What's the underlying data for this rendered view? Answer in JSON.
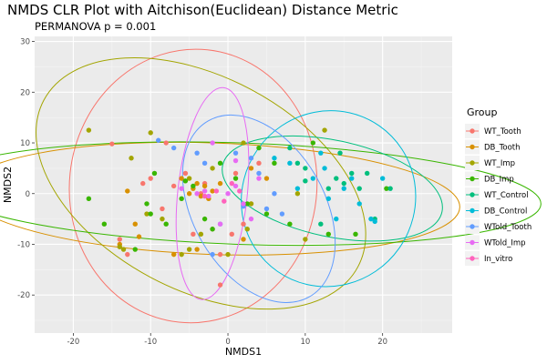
{
  "chart_data": {
    "type": "scatter",
    "title": "NMDS CLR Plot with Aitchison(Euclidean) Distance Metric",
    "subtitle": "PERMANOVA p = 0.001",
    "xlabel": "NMDS1",
    "ylabel": "NMDS2",
    "xlim": [
      -25,
      29
    ],
    "ylim": [
      -27.5,
      31
    ],
    "xticks": [
      -20,
      -10,
      0,
      10,
      20
    ],
    "yticks": [
      -20,
      -10,
      0,
      10,
      20,
      30
    ],
    "grid": true,
    "legend_title": "Group",
    "legend_position": "right",
    "series": [
      {
        "name": "WT_Tooth",
        "color": "#F8766D",
        "points": [
          [
            -15,
            9.8
          ],
          [
            -11,
            2
          ],
          [
            -13,
            -12
          ],
          [
            -10,
            3
          ],
          [
            -8.5,
            -3
          ],
          [
            -8,
            10
          ],
          [
            -7,
            1.5
          ],
          [
            -5.5,
            4
          ],
          [
            -4.5,
            -8
          ],
          [
            -3.5,
            0
          ],
          [
            -3,
            2
          ],
          [
            -2,
            -7
          ],
          [
            -1,
            -12
          ],
          [
            0.5,
            -8
          ],
          [
            1,
            4
          ],
          [
            2,
            -6
          ],
          [
            3,
            -2
          ],
          [
            4,
            6
          ],
          [
            -14,
            -9
          ],
          [
            -1,
            -18
          ]
        ],
        "ellipse": {
          "cx": -4.5,
          "cy": 1.5,
          "rx": 16,
          "ry": 27,
          "angle": -6
        }
      },
      {
        "name": "DB_Tooth",
        "color": "#D89000",
        "points": [
          [
            -14,
            -10
          ],
          [
            -11.5,
            -8.5
          ],
          [
            -13,
            0.5
          ],
          [
            -7,
            -12
          ],
          [
            -6,
            3
          ],
          [
            -5,
            0
          ],
          [
            -4.5,
            1
          ],
          [
            -4,
            2
          ],
          [
            -3.5,
            -0.5
          ],
          [
            -3,
            1.5
          ],
          [
            -2.5,
            -1
          ],
          [
            -2,
            0.5
          ],
          [
            -1,
            2
          ],
          [
            3,
            5
          ],
          [
            5,
            3
          ],
          [
            -12,
            -6
          ],
          [
            -4,
            -11
          ],
          [
            2,
            -9
          ]
        ],
        "ellipse": {
          "cx": -2,
          "cy": -1,
          "rx": 32,
          "ry": 11,
          "angle": -2
        }
      },
      {
        "name": "WT_Imp",
        "color": "#A3A500",
        "points": [
          [
            -18,
            12.5
          ],
          [
            -14,
            -10.5
          ],
          [
            -13.5,
            -11
          ],
          [
            -12.5,
            7
          ],
          [
            -10.5,
            -4
          ],
          [
            -8.5,
            -5
          ],
          [
            -6,
            -12
          ],
          [
            -5,
            -11
          ],
          [
            -5,
            3
          ],
          [
            -3.5,
            -8
          ],
          [
            -2,
            5
          ],
          [
            0,
            -12
          ],
          [
            2,
            10
          ],
          [
            3,
            -2
          ],
          [
            9,
            0
          ],
          [
            10,
            -9
          ],
          [
            12.5,
            12.5
          ],
          [
            -10,
            12
          ],
          [
            2.5,
            -7
          ]
        ],
        "ellipse": {
          "cx": -3.5,
          "cy": 2,
          "rx": 23,
          "ry": 21,
          "angle": -28
        }
      },
      {
        "name": "DB_Imp",
        "color": "#39B600",
        "points": [
          [
            -18,
            -1
          ],
          [
            -16,
            -6
          ],
          [
            -12,
            -11
          ],
          [
            -10,
            -4
          ],
          [
            -9.5,
            4
          ],
          [
            -8,
            -6
          ],
          [
            -6,
            -1
          ],
          [
            -5.5,
            2.5
          ],
          [
            -4.5,
            1.5
          ],
          [
            -3,
            -5
          ],
          [
            -2,
            -7
          ],
          [
            -1,
            6
          ],
          [
            1,
            3
          ],
          [
            2.5,
            -2
          ],
          [
            4,
            9
          ],
          [
            6,
            6
          ],
          [
            8,
            -6
          ],
          [
            11,
            10
          ],
          [
            13,
            -8
          ],
          [
            20.5,
            1
          ],
          [
            -10.5,
            -2
          ],
          [
            5,
            -4
          ],
          [
            16.5,
            -8
          ]
        ],
        "ellipse": {
          "cx": 1.5,
          "cy": 0,
          "rx": 39,
          "ry": 10,
          "angle": -2
        }
      },
      {
        "name": "WT_Control",
        "color": "#00BF7D",
        "points": [
          [
            8,
            9
          ],
          [
            9,
            6
          ],
          [
            10,
            5
          ],
          [
            12,
            -6
          ],
          [
            13,
            1
          ],
          [
            14,
            3
          ],
          [
            15,
            2
          ],
          [
            16,
            4
          ],
          [
            17,
            1
          ],
          [
            18,
            4
          ],
          [
            19,
            -5
          ],
          [
            21,
            1
          ],
          [
            10,
            2.5
          ],
          [
            14.5,
            8
          ]
        ],
        "ellipse": {
          "cx": 13.5,
          "cy": 1,
          "rx": 14.5,
          "ry": 9.5,
          "angle": -12
        }
      },
      {
        "name": "DB_Control",
        "color": "#00BCD8",
        "points": [
          [
            6,
            7
          ],
          [
            8,
            6
          ],
          [
            9,
            1
          ],
          [
            11,
            3
          ],
          [
            12,
            8
          ],
          [
            13,
            -1
          ],
          [
            14,
            -5
          ],
          [
            15,
            1
          ],
          [
            16,
            3
          ],
          [
            17,
            -2
          ],
          [
            18.5,
            -5
          ],
          [
            19,
            -5.5
          ],
          [
            20,
            3
          ],
          [
            12.5,
            5
          ]
        ],
        "ellipse": {
          "cx": 13,
          "cy": -1,
          "rx": 11.5,
          "ry": 17,
          "angle": 55
        }
      },
      {
        "name": "WTold_Tooth",
        "color": "#619CFF",
        "points": [
          [
            -9,
            10.5
          ],
          [
            -7,
            9
          ],
          [
            -4,
            8
          ],
          [
            -2,
            -12
          ],
          [
            -1,
            -6
          ],
          [
            1,
            8
          ],
          [
            3,
            7
          ],
          [
            4,
            4
          ],
          [
            5,
            -3
          ],
          [
            6,
            0
          ],
          [
            7,
            -4
          ],
          [
            -3,
            6
          ],
          [
            2,
            -2.5
          ]
        ],
        "ellipse": {
          "cx": 4,
          "cy": -3,
          "rx": 8.5,
          "ry": 20,
          "angle": 30
        }
      },
      {
        "name": "WTold_Imp",
        "color": "#E76BF3",
        "points": [
          [
            -6,
            1
          ],
          [
            -4,
            0
          ],
          [
            -3,
            0.5
          ],
          [
            -2,
            10
          ],
          [
            -1,
            -6
          ],
          [
            0,
            0
          ],
          [
            1,
            1.5
          ],
          [
            2,
            -2
          ],
          [
            3,
            -5
          ],
          [
            4,
            3
          ],
          [
            -2.5,
            -0.5
          ],
          [
            1,
            6.5
          ]
        ],
        "ellipse": {
          "cx": -2,
          "cy": 0,
          "rx": 4.5,
          "ry": 21,
          "angle": -6
        }
      },
      {
        "name": "In_vitro",
        "color": "#FF62BC",
        "points": [
          [
            -3,
            -0.5
          ],
          [
            -1.5,
            0.5
          ],
          [
            -0.5,
            -1.5
          ],
          [
            0.5,
            2
          ],
          [
            1.5,
            0.5
          ]
        ]
      }
    ]
  }
}
